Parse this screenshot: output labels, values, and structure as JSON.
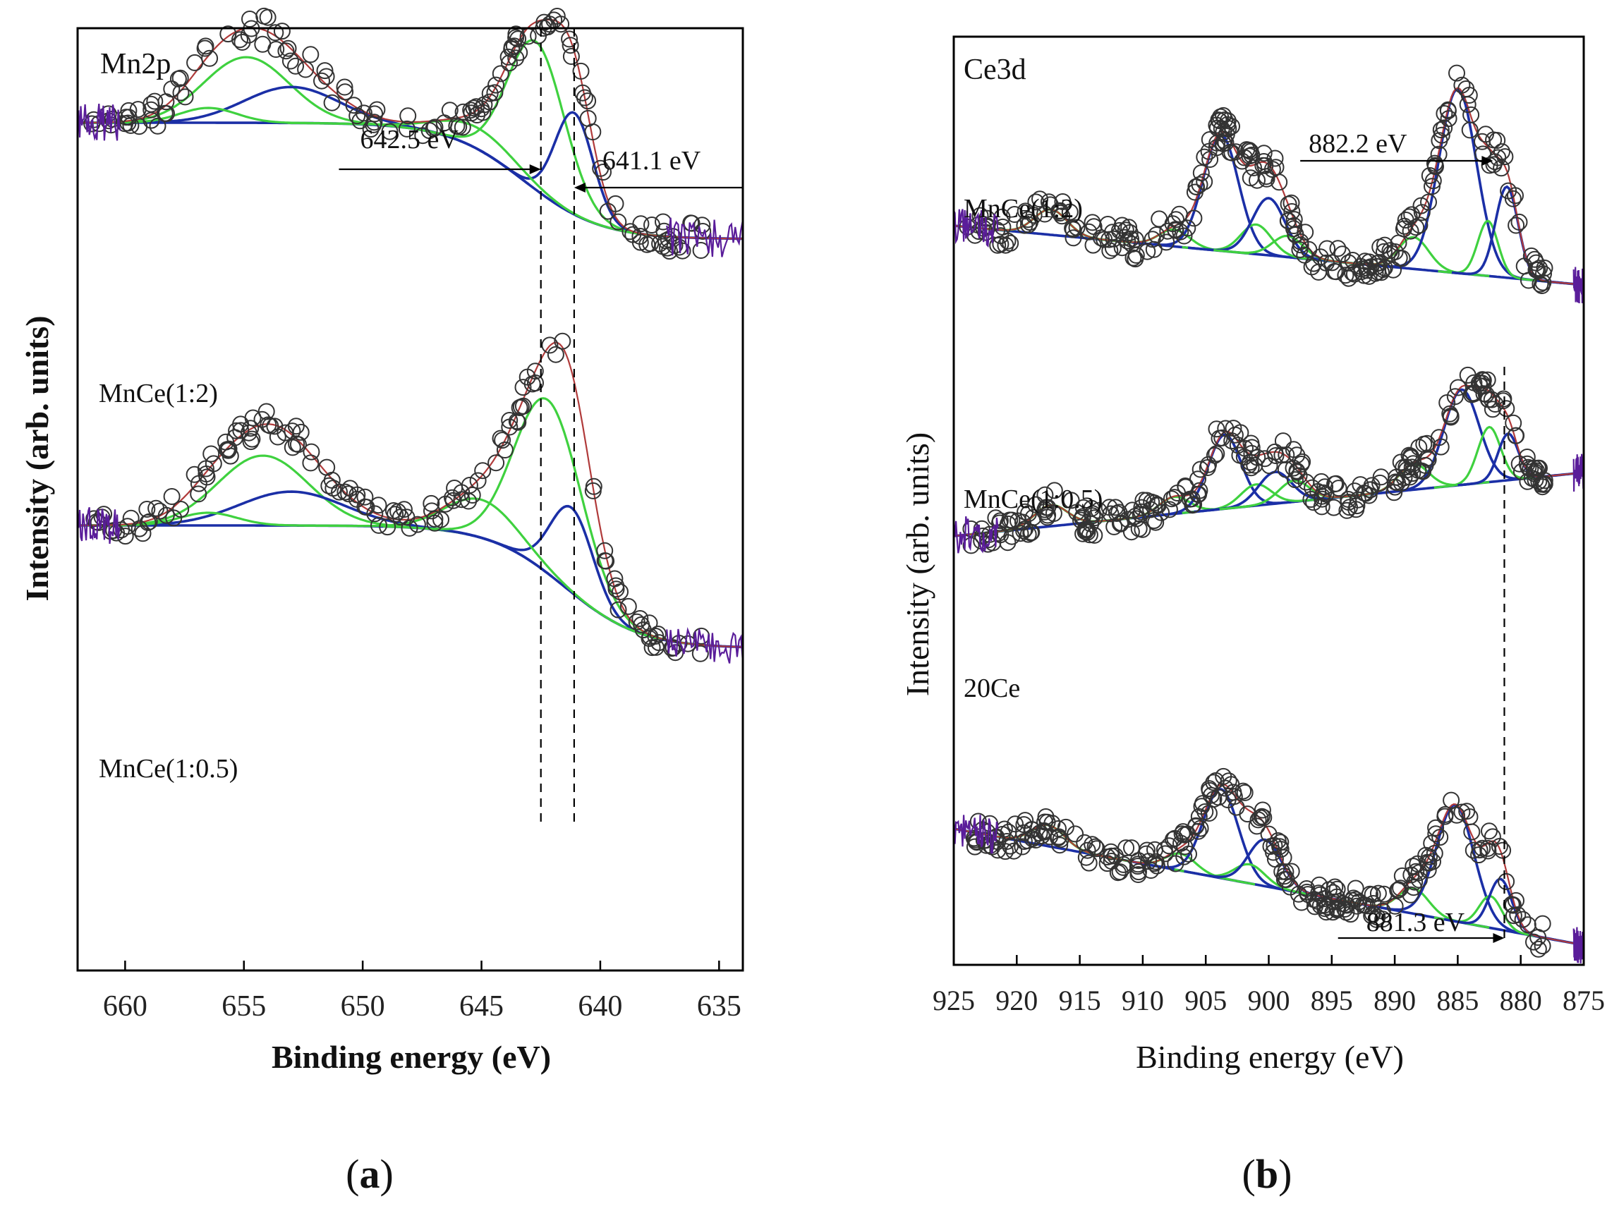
{
  "chart_data": [
    {
      "type": "line",
      "panel_label": "(a)",
      "title": "Mn2p",
      "xlabel": "Binding energy (eV)",
      "ylabel": "Intensity (arb. units)",
      "xlim": [
        662,
        634
      ],
      "x_ticks": [
        660,
        655,
        650,
        645,
        640,
        635
      ],
      "x_tick_labels": [
        "660",
        "655",
        "650",
        "645",
        "640",
        "635"
      ],
      "grid": false,
      "annotations": [
        {
          "text": "642.5 eV",
          "x": 642.5,
          "arrow": "right"
        },
        {
          "text": "641.1 eV",
          "x": 641.1,
          "arrow": "left"
        }
      ],
      "reference_lines": [
        642.5,
        641.1
      ],
      "series": [
        {
          "name": "MnCe(1:2)",
          "baseline_left": 0.82,
          "baseline_right": 0.27,
          "bg_center": 643.2,
          "bg_width": 1.6,
          "noise": 0.07,
          "peaks": [
            {
              "center": 654.9,
              "height": 0.31,
              "width": 1.8,
              "color": "green"
            },
            {
              "center": 653.0,
              "height": 0.17,
              "width": 2.0,
              "color": "blue"
            },
            {
              "center": 656.5,
              "height": 0.07,
              "width": 1.2,
              "color": "green"
            },
            {
              "center": 642.7,
              "height": 0.7,
              "width": 1.2,
              "color": "green"
            },
            {
              "center": 641.1,
              "height": 0.48,
              "width": 0.8,
              "color": "blue"
            },
            {
              "center": 645.2,
              "height": 0.1,
              "width": 1.6,
              "color": "green"
            }
          ]
        },
        {
          "name": "MnCe(1:0.5)",
          "baseline_left": 0.8,
          "baseline_right": 0.22,
          "bg_center": 641.5,
          "bg_width": 1.6,
          "noise": 0.06,
          "peaks": [
            {
              "center": 654.2,
              "height": 0.33,
              "width": 1.9,
              "color": "green"
            },
            {
              "center": 653.0,
              "height": 0.16,
              "width": 2.2,
              "color": "blue"
            },
            {
              "center": 656.5,
              "height": 0.06,
              "width": 1.2,
              "color": "green"
            },
            {
              "center": 642.2,
              "height": 0.82,
              "width": 1.4,
              "color": "green"
            },
            {
              "center": 641.2,
              "height": 0.4,
              "width": 0.9,
              "color": "blue"
            },
            {
              "center": 645.0,
              "height": 0.18,
              "width": 1.5,
              "color": "green"
            }
          ]
        }
      ]
    },
    {
      "type": "line",
      "panel_label": "(b)",
      "title": "Ce3d",
      "xlabel": "Binding energy (eV)",
      "ylabel": "Intensity (arb. units)",
      "xlim": [
        925,
        875
      ],
      "x_ticks": [
        925,
        920,
        915,
        910,
        905,
        900,
        895,
        890,
        885,
        880,
        875
      ],
      "x_tick_labels": [
        "925",
        "920",
        "915",
        "910",
        "905",
        "900",
        "895",
        "890",
        "885",
        "880",
        "875"
      ],
      "grid": false,
      "annotations": [
        {
          "text": "882.2 eV",
          "x": 882.2,
          "arrow": "right"
        },
        {
          "text": "881.3 eV",
          "x": 881.3,
          "arrow": "right"
        }
      ],
      "reference_lines": [
        881.3
      ],
      "series": [
        {
          "name": "MnCe(1:2)",
          "baseline_left": 0.5,
          "baseline_right": 0.22,
          "noise": 0.08,
          "peaks": [
            {
              "center": 917.3,
              "height": 0.12,
              "width": 1.3,
              "color": "green"
            },
            {
              "center": 907.5,
              "height": 0.08,
              "width": 1.2,
              "color": "green"
            },
            {
              "center": 903.8,
              "height": 0.55,
              "width": 1.4,
              "color": "blue"
            },
            {
              "center": 901.0,
              "height": 0.14,
              "width": 1.2,
              "color": "green"
            },
            {
              "center": 900.0,
              "height": 0.27,
              "width": 1.3,
              "color": "blue"
            },
            {
              "center": 898.5,
              "height": 0.1,
              "width": 1.2,
              "color": "green"
            },
            {
              "center": 888.5,
              "height": 0.15,
              "width": 1.2,
              "color": "green"
            },
            {
              "center": 885.0,
              "height": 0.87,
              "width": 1.5,
              "color": "blue"
            },
            {
              "center": 882.6,
              "height": 0.26,
              "width": 0.8,
              "color": "green"
            },
            {
              "center": 881.1,
              "height": 0.43,
              "width": 0.9,
              "color": "blue"
            }
          ]
        },
        {
          "name": "MnCe(1:0.5)",
          "baseline_left": 0.3,
          "baseline_right": 0.6,
          "noise": 0.07,
          "peaks": [
            {
              "center": 917.3,
              "height": 0.1,
              "width": 1.3,
              "color": "green"
            },
            {
              "center": 907.5,
              "height": 0.08,
              "width": 1.2,
              "color": "green"
            },
            {
              "center": 903.5,
              "height": 0.35,
              "width": 1.3,
              "color": "blue"
            },
            {
              "center": 901.0,
              "height": 0.1,
              "width": 1.2,
              "color": "green"
            },
            {
              "center": 899.5,
              "height": 0.15,
              "width": 1.3,
              "color": "blue"
            },
            {
              "center": 898.0,
              "height": 0.1,
              "width": 1.2,
              "color": "green"
            },
            {
              "center": 888.5,
              "height": 0.12,
              "width": 1.2,
              "color": "green"
            },
            {
              "center": 884.7,
              "height": 0.45,
              "width": 1.4,
              "color": "blue"
            },
            {
              "center": 882.5,
              "height": 0.26,
              "width": 0.9,
              "color": "green"
            },
            {
              "center": 881.0,
              "height": 0.22,
              "width": 0.8,
              "color": "blue"
            }
          ]
        },
        {
          "name": "20Ce",
          "baseline_left": 0.55,
          "baseline_right": 0.0,
          "noise": 0.07,
          "peaks": [
            {
              "center": 917.5,
              "height": 0.1,
              "width": 1.3,
              "color": "green"
            },
            {
              "center": 907.0,
              "height": 0.08,
              "width": 1.2,
              "color": "green"
            },
            {
              "center": 903.8,
              "height": 0.42,
              "width": 1.4,
              "color": "blue"
            },
            {
              "center": 901.5,
              "height": 0.09,
              "width": 1.2,
              "color": "green"
            },
            {
              "center": 900.3,
              "height": 0.22,
              "width": 1.3,
              "color": "blue"
            },
            {
              "center": 888.5,
              "height": 0.12,
              "width": 1.2,
              "color": "green"
            },
            {
              "center": 885.2,
              "height": 0.55,
              "width": 1.5,
              "color": "blue"
            },
            {
              "center": 882.4,
              "height": 0.15,
              "width": 0.9,
              "color": "green"
            },
            {
              "center": 881.6,
              "height": 0.24,
              "width": 0.9,
              "color": "blue"
            }
          ]
        }
      ]
    }
  ]
}
